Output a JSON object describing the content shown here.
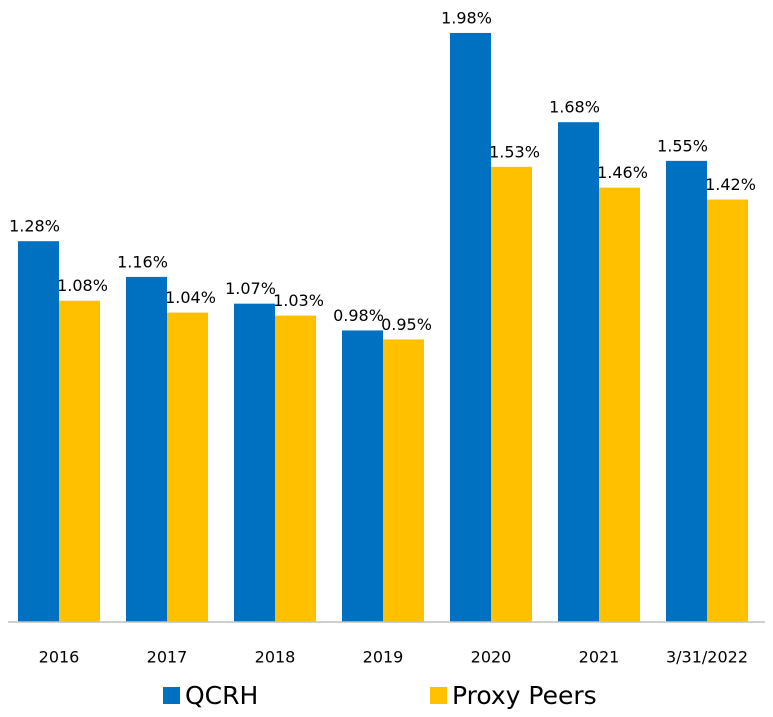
{
  "chart_data": {
    "type": "bar",
    "categories": [
      "2016",
      "2017",
      "2018",
      "2019",
      "2020",
      "2021",
      "3/31/2022"
    ],
    "series": [
      {
        "name": "QCRH",
        "color": "#0070c0",
        "values": [
          1.28,
          1.16,
          1.07,
          0.98,
          1.98,
          1.68,
          1.55
        ],
        "value_labels": [
          "1.28%",
          "1.16%",
          "1.07%",
          "0.98%",
          "1.98%",
          "1.68%",
          "1.55%"
        ]
      },
      {
        "name": "Proxy Peers",
        "color": "#ffc000",
        "values": [
          1.08,
          1.04,
          1.03,
          0.95,
          1.53,
          1.46,
          1.42
        ],
        "value_labels": [
          "1.08%",
          "1.04%",
          "1.03%",
          "0.95%",
          "1.53%",
          "1.46%",
          "1.42%"
        ]
      }
    ],
    "ylim": [
      0,
      2
    ],
    "legend": "bottom"
  }
}
